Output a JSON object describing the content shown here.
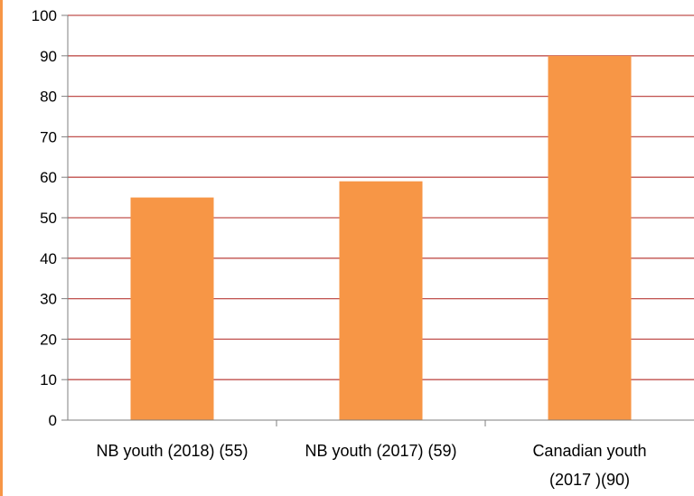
{
  "chart_data": {
    "type": "bar",
    "categories": [
      [
        "NB youth (2018) (55)"
      ],
      [
        "NB youth (2017) (59)"
      ],
      [
        "Canadian youth",
        "(2017 )(90)"
      ]
    ],
    "values": [
      55,
      59,
      90
    ],
    "ylim": [
      0,
      100
    ],
    "yticks": [
      0,
      10,
      20,
      30,
      40,
      50,
      60,
      70,
      80,
      90,
      100
    ],
    "grid": true,
    "title": "",
    "xlabel": "",
    "ylabel": ""
  },
  "colors": {
    "bar": "#f79646",
    "gridline": "#c0504d",
    "axis": "#7f7f7f",
    "frame_accent": "#f79646"
  }
}
